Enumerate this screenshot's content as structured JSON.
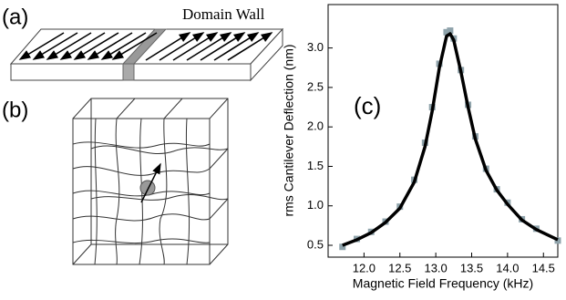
{
  "panel_labels": {
    "a": "(a)",
    "b": "(b)",
    "c": "(c)"
  },
  "domain_wall_label": "Domain Wall",
  "chart_data": {
    "type": "line",
    "xlabel": "Magnetic Field Frequency (kHz)",
    "ylabel": "rms Cantilever Deflection (nm)",
    "x": [
      11.7,
      11.9,
      12.1,
      12.3,
      12.5,
      12.7,
      12.85,
      12.95,
      13.05,
      13.15,
      13.2,
      13.25,
      13.35,
      13.45,
      13.55,
      13.7,
      13.85,
      14.0,
      14.2,
      14.4,
      14.7
    ],
    "series": [
      {
        "color": "#8fa3ab",
        "values": [
          0.48,
          0.58,
          0.67,
          0.8,
          0.99,
          1.33,
          1.8,
          2.25,
          2.8,
          3.2,
          3.22,
          3.12,
          2.72,
          2.28,
          1.88,
          1.47,
          1.21,
          1.04,
          0.83,
          0.71,
          0.56
        ]
      },
      {
        "color": "#000000",
        "values": [
          0.5,
          0.57,
          0.66,
          0.79,
          0.97,
          1.3,
          1.75,
          2.2,
          2.75,
          3.15,
          3.18,
          3.1,
          2.7,
          2.25,
          1.85,
          1.45,
          1.2,
          1.02,
          0.82,
          0.7,
          0.57
        ]
      }
    ],
    "xlim": [
      11.5,
      14.7
    ],
    "ylim": [
      0.35,
      3.55
    ],
    "xticks": [
      {
        "value": 12,
        "label": "12.0"
      },
      12.5,
      {
        "value": 13,
        "label": "13.0"
      },
      13.5,
      {
        "value": 14,
        "label": "14.0"
      },
      14.5
    ],
    "yticks": [
      0.5,
      {
        "value": 1,
        "label": "1.0"
      },
      1.5,
      {
        "value": 2,
        "label": "2.0"
      },
      2.5,
      {
        "value": 3,
        "label": "3.0"
      }
    ]
  }
}
